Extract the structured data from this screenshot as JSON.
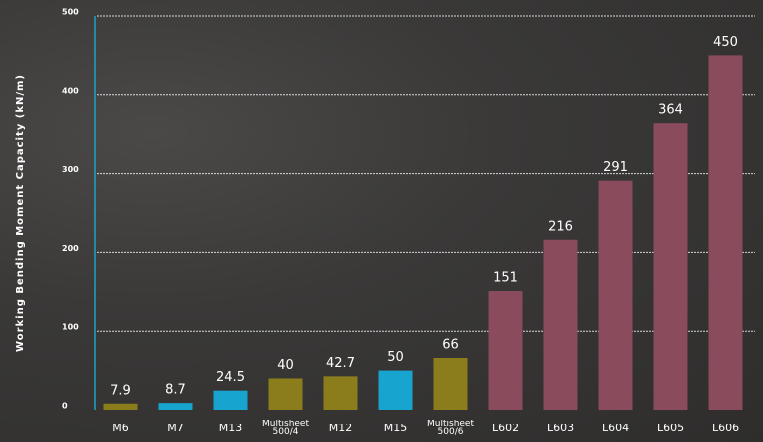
{
  "chart_data": {
    "type": "bar",
    "y_label": "Working Bending Moment Capacity (kN/m)",
    "categories": [
      "M6",
      "M7",
      "M13",
      "Multisheet 500/4",
      "M12",
      "M15",
      "Multisheet 500/6",
      "L602",
      "L603",
      "L604",
      "L605",
      "L606"
    ],
    "values": [
      7.9,
      8.7,
      24.5,
      40,
      42.7,
      50,
      66,
      151,
      216,
      291,
      364,
      450
    ],
    "colors": [
      "#8b7d1c",
      "#17a5cf",
      "#17a5cf",
      "#8b7d1c",
      "#8b7d1c",
      "#17a5cf",
      "#8b7d1c",
      "#8a4b5c",
      "#8a4b5c",
      "#8a4b5c",
      "#8a4b5c",
      "#8a4b5c"
    ],
    "ylim": [
      0,
      500
    ],
    "yticks": [
      0,
      100,
      200,
      300,
      400,
      500
    ],
    "grid": true
  }
}
